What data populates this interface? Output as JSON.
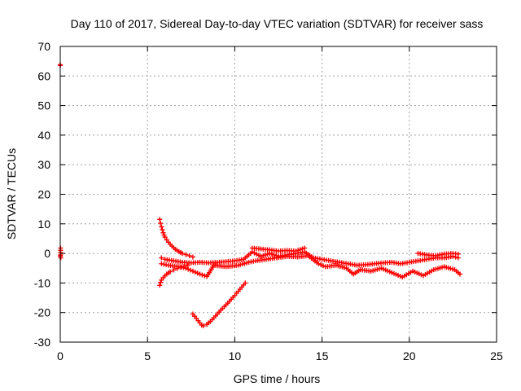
{
  "chart_data": {
    "type": "scatter",
    "title": "Day 110 of 2017, Sidereal Day-to-day VTEC variation (SDTVAR) for receiver sass",
    "xlabel": "GPS time / hours",
    "ylabel": "SDTVAR / TECUs",
    "xlim": [
      0,
      25
    ],
    "ylim": [
      -30,
      70
    ],
    "xticks": [
      0,
      5,
      10,
      15,
      20,
      25
    ],
    "yticks": [
      -30,
      -20,
      -10,
      0,
      10,
      20,
      30,
      40,
      50,
      60,
      70
    ],
    "grid": true,
    "marker": "+",
    "color": "#ff0000",
    "series": [
      {
        "name": "isolated-start",
        "points": [
          [
            0.0,
            63.6
          ],
          [
            0.0,
            63.8
          ],
          [
            0.02,
            1.8
          ],
          [
            0.02,
            -0.5
          ],
          [
            0.03,
            -1.5
          ],
          [
            0.01,
            -0.9
          ]
        ]
      },
      {
        "name": "descending-arc-upper",
        "points": [
          [
            5.7,
            11.5
          ],
          [
            5.75,
            10.2
          ],
          [
            5.8,
            9.0
          ],
          [
            5.85,
            8.0
          ],
          [
            5.9,
            7.0
          ],
          [
            5.95,
            6.2
          ],
          [
            6.0,
            5.5
          ],
          [
            6.1,
            4.6
          ],
          [
            6.2,
            3.8
          ],
          [
            6.3,
            3.1
          ],
          [
            6.4,
            2.5
          ],
          [
            6.5,
            1.9
          ],
          [
            6.6,
            1.4
          ],
          [
            6.7,
            1.0
          ],
          [
            6.8,
            0.6
          ],
          [
            6.9,
            0.3
          ],
          [
            7.0,
            0.0
          ],
          [
            7.2,
            -0.4
          ],
          [
            7.4,
            -0.8
          ],
          [
            7.6,
            -1.2
          ]
        ]
      },
      {
        "name": "ascending-arc-lower",
        "points": [
          [
            5.7,
            -10.8
          ],
          [
            5.75,
            -9.8
          ],
          [
            5.8,
            -9.0
          ],
          [
            5.9,
            -8.2
          ],
          [
            6.0,
            -7.6
          ],
          [
            6.1,
            -7.0
          ],
          [
            6.2,
            -6.6
          ],
          [
            6.3,
            -6.2
          ],
          [
            6.5,
            -5.6
          ],
          [
            6.7,
            -5.1
          ],
          [
            6.9,
            -4.7
          ],
          [
            7.1,
            -4.3
          ],
          [
            7.3,
            -4.0
          ]
        ]
      },
      {
        "name": "main-band",
        "points": [
          [
            5.8,
            -1.5
          ],
          [
            6.0,
            -2.0
          ],
          [
            6.5,
            -2.5
          ],
          [
            7.0,
            -3.0
          ],
          [
            7.5,
            -3.2
          ],
          [
            8.0,
            -3.0
          ],
          [
            8.5,
            -3.2
          ],
          [
            9.0,
            -3.0
          ],
          [
            9.5,
            -2.8
          ],
          [
            10.0,
            -2.5
          ],
          [
            10.5,
            -2.0
          ],
          [
            11.0,
            0.5
          ],
          [
            11.5,
            -1.0
          ],
          [
            12.0,
            0.0
          ],
          [
            12.5,
            -1.0
          ],
          [
            13.0,
            -0.5
          ],
          [
            13.5,
            0.0
          ],
          [
            14.0,
            0.5
          ],
          [
            14.5,
            -1.5
          ],
          [
            15.0,
            -2.0
          ],
          [
            15.5,
            -2.5
          ],
          [
            16.0,
            -3.0
          ],
          [
            16.5,
            -3.5
          ],
          [
            17.0,
            -4.0
          ],
          [
            17.5,
            -3.8
          ],
          [
            18.0,
            -3.5
          ],
          [
            18.5,
            -3.2
          ],
          [
            19.0,
            -3.0
          ],
          [
            19.5,
            -3.5
          ],
          [
            20.0,
            -3.0
          ],
          [
            20.5,
            -2.5
          ],
          [
            21.0,
            -2.0
          ],
          [
            21.5,
            -1.5
          ],
          [
            22.0,
            -1.5
          ],
          [
            22.5,
            -1.0
          ],
          [
            22.8,
            -1.5
          ]
        ]
      },
      {
        "name": "main-band-lower",
        "points": [
          [
            5.8,
            -3.5
          ],
          [
            6.2,
            -4.0
          ],
          [
            6.8,
            -4.5
          ],
          [
            7.2,
            -5.0
          ],
          [
            7.6,
            -6.0
          ],
          [
            8.0,
            -7.0
          ],
          [
            8.4,
            -7.8
          ],
          [
            8.8,
            -4.0
          ],
          [
            9.5,
            -4.5
          ],
          [
            10.2,
            -4.0
          ],
          [
            10.8,
            -3.0
          ],
          [
            11.2,
            -2.5
          ],
          [
            11.8,
            -2.0
          ],
          [
            12.4,
            -1.5
          ],
          [
            13.0,
            -1.0
          ],
          [
            13.6,
            -1.2
          ],
          [
            14.2,
            -0.8
          ],
          [
            14.8,
            -3.5
          ],
          [
            15.2,
            -4.5
          ],
          [
            15.8,
            -4.0
          ],
          [
            16.4,
            -5.0
          ],
          [
            16.8,
            -7.0
          ],
          [
            17.2,
            -5.5
          ],
          [
            17.8,
            -6.0
          ],
          [
            18.4,
            -5.0
          ],
          [
            19.0,
            -6.5
          ],
          [
            19.6,
            -8.0
          ],
          [
            20.2,
            -6.0
          ],
          [
            20.8,
            -7.5
          ],
          [
            21.4,
            -5.5
          ],
          [
            22.0,
            -4.5
          ],
          [
            22.6,
            -5.5
          ],
          [
            22.9,
            -7.0
          ]
        ]
      },
      {
        "name": "main-band-upper",
        "points": [
          [
            11.0,
            1.8
          ],
          [
            11.5,
            1.5
          ],
          [
            12.0,
            1.2
          ],
          [
            12.5,
            0.8
          ],
          [
            13.0,
            1.0
          ],
          [
            13.5,
            0.8
          ],
          [
            14.0,
            1.8
          ],
          [
            20.5,
            0.0
          ],
          [
            21.0,
            -0.5
          ],
          [
            21.5,
            -0.8
          ],
          [
            22.0,
            -0.2
          ],
          [
            22.5,
            0.0
          ],
          [
            22.8,
            -0.2
          ]
        ]
      },
      {
        "name": "v-curve",
        "points": [
          [
            7.6,
            -20.5
          ],
          [
            7.8,
            -22.0
          ],
          [
            8.0,
            -23.5
          ],
          [
            8.1,
            -24.2
          ],
          [
            8.2,
            -24.5
          ],
          [
            8.4,
            -24.0
          ],
          [
            8.6,
            -23.0
          ],
          [
            8.8,
            -21.8
          ],
          [
            9.0,
            -20.5
          ],
          [
            9.2,
            -19.2
          ],
          [
            9.4,
            -18.0
          ],
          [
            9.6,
            -16.8
          ],
          [
            9.8,
            -15.5
          ],
          [
            10.0,
            -14.2
          ],
          [
            10.2,
            -12.8
          ],
          [
            10.4,
            -11.4
          ],
          [
            10.6,
            -10.0
          ]
        ]
      }
    ]
  }
}
